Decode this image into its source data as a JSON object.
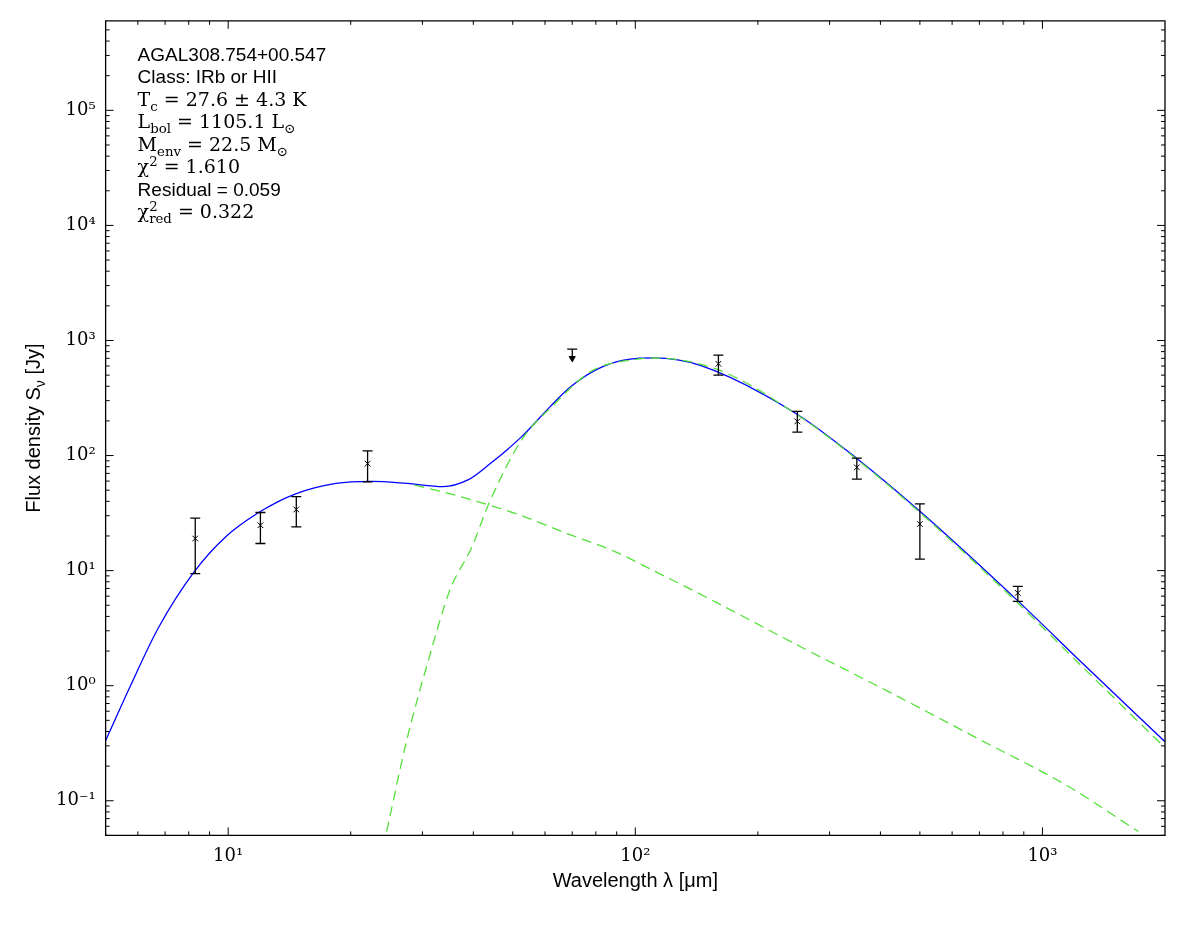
{
  "chart_data": {
    "type": "line",
    "xlabel": "Wavelength λ [μm]",
    "ylabel": "Flux density S$_{ν}$ [Jy]",
    "annotations": [
      "AGAL308.754+00.547",
      "Class: IRb or HII",
      "T$_{c}$ = 27.6 ± 4.3 K",
      "L$_{bol}$ = 1105.1 L$_{⊙}$",
      "M$_{env}$ = 22.5 M$_{⊙}$",
      "χ$^{2}$ = 1.610",
      "Residual = 0.059",
      "χ$^{2}$$_{red}$ = 0.322"
    ],
    "log": "xy",
    "grid": false,
    "legend": false,
    "xlim": [
      5,
      2000
    ],
    "ylim": [
      0.05,
      600000
    ],
    "xticks": [
      {
        "value": 5,
        "label": null
      },
      {
        "value": 6,
        "label": null
      },
      {
        "value": 7,
        "label": null
      },
      {
        "value": 8,
        "label": null
      },
      {
        "value": 9,
        "label": null
      },
      {
        "value": 10,
        "label": "10¹"
      },
      {
        "value": 20,
        "label": null
      },
      {
        "value": 30,
        "label": null
      },
      {
        "value": 40,
        "label": null
      },
      {
        "value": 50,
        "label": null
      },
      {
        "value": 60,
        "label": null
      },
      {
        "value": 70,
        "label": null
      },
      {
        "value": 80,
        "label": null
      },
      {
        "value": 90,
        "label": null
      },
      {
        "value": 100,
        "label": "10²"
      },
      {
        "value": 200,
        "label": null
      },
      {
        "value": 300,
        "label": null
      },
      {
        "value": 400,
        "label": null
      },
      {
        "value": 500,
        "label": null
      },
      {
        "value": 600,
        "label": null
      },
      {
        "value": 700,
        "label": null
      },
      {
        "value": 800,
        "label": null
      },
      {
        "value": 900,
        "label": null
      },
      {
        "value": 1000,
        "label": "10³"
      }
    ],
    "yticks": [
      {
        "value": 0.05,
        "label": null
      },
      {
        "value": 0.06,
        "label": null
      },
      {
        "value": 0.07,
        "label": null
      },
      {
        "value": 0.08,
        "label": null
      },
      {
        "value": 0.09,
        "label": null
      },
      {
        "value": 0.1,
        "label": "10⁻¹"
      },
      {
        "value": 0.2,
        "label": null
      },
      {
        "value": 0.3,
        "label": null
      },
      {
        "value": 0.4,
        "label": null
      },
      {
        "value": 0.5,
        "label": null
      },
      {
        "value": 0.6,
        "label": null
      },
      {
        "value": 0.7,
        "label": null
      },
      {
        "value": 0.8,
        "label": null
      },
      {
        "value": 0.9,
        "label": null
      },
      {
        "value": 1,
        "label": "10⁰"
      },
      {
        "value": 2,
        "label": null
      },
      {
        "value": 3,
        "label": null
      },
      {
        "value": 4,
        "label": null
      },
      {
        "value": 5,
        "label": null
      },
      {
        "value": 6,
        "label": null
      },
      {
        "value": 7,
        "label": null
      },
      {
        "value": 8,
        "label": null
      },
      {
        "value": 9,
        "label": null
      },
      {
        "value": 10,
        "label": "10¹"
      },
      {
        "value": 20,
        "label": null
      },
      {
        "value": 30,
        "label": null
      },
      {
        "value": 40,
        "label": null
      },
      {
        "value": 50,
        "label": null
      },
      {
        "value": 60,
        "label": null
      },
      {
        "value": 70,
        "label": null
      },
      {
        "value": 80,
        "label": null
      },
      {
        "value": 90,
        "label": null
      },
      {
        "value": 100,
        "label": "10²"
      },
      {
        "value": 200,
        "label": null
      },
      {
        "value": 300,
        "label": null
      },
      {
        "value": 400,
        "label": null
      },
      {
        "value": 500,
        "label": null
      },
      {
        "value": 600,
        "label": null
      },
      {
        "value": 700,
        "label": null
      },
      {
        "value": 800,
        "label": null
      },
      {
        "value": 900,
        "label": null
      },
      {
        "value": 1000,
        "label": "10³"
      },
      {
        "value": 2000,
        "label": null
      },
      {
        "value": 3000,
        "label": null
      },
      {
        "value": 4000,
        "label": null
      },
      {
        "value": 5000,
        "label": null
      },
      {
        "value": 6000,
        "label": null
      },
      {
        "value": 7000,
        "label": null
      },
      {
        "value": 8000,
        "label": null
      },
      {
        "value": 9000,
        "label": null
      },
      {
        "value": 10000,
        "label": "10⁴"
      },
      {
        "value": 20000,
        "label": null
      },
      {
        "value": 30000,
        "label": null
      },
      {
        "value": 40000,
        "label": null
      },
      {
        "value": 50000,
        "label": null
      },
      {
        "value": 60000,
        "label": null
      },
      {
        "value": 70000,
        "label": null
      },
      {
        "value": 80000,
        "label": null
      },
      {
        "value": 90000,
        "label": null
      },
      {
        "value": 100000,
        "label": "10⁵"
      },
      {
        "value": 200000,
        "label": null
      },
      {
        "value": 300000,
        "label": null
      },
      {
        "value": 400000,
        "label": null
      },
      {
        "value": 500000,
        "label": null
      }
    ],
    "series": [
      {
        "color": "#55e03c",
        "line_style": "dashed",
        "marker": "none",
        "x": [
          24.5,
          27.5,
          31.1,
          35.1,
          39.6,
          43.8,
          52.6,
          62.9,
          78.6,
          102.4,
          111,
          160,
          249,
          350,
          500,
          865,
          1273,
          2000
        ],
        "values": [
          0.054,
          0.344,
          1.71,
          6.87,
          15.8,
          39.1,
          137,
          274,
          550,
          692,
          704,
          555,
          228,
          93,
          32,
          5.33,
          1.38,
          0.289
        ]
      },
      {
        "color": "#55e03c",
        "line_style": "dashed",
        "marker": "none",
        "x": [
          28.7,
          35.1,
          43,
          52.6,
          68.2,
          88.5,
          110.2,
          153.8,
          254.7,
          421,
          697,
          1151,
          1720
        ],
        "values": [
          55.3,
          46.5,
          37.8,
          30,
          20.9,
          14.8,
          10.1,
          5.57,
          2.18,
          0.88,
          0.344,
          0.135,
          0.054
        ]
      },
      {
        "color": "#0000ff",
        "line_style": "solid",
        "marker": "none",
        "x": [
          5,
          5.74,
          6.74,
          8.24,
          9.88,
          12.03,
          14.65,
          18.4,
          22.5,
          27.5,
          33.7,
          38.8,
          43.8,
          52.6,
          61.7,
          69.7,
          83.7,
          102.4,
          111,
          145,
          249,
          350,
          500,
          865,
          1273,
          2000
        ],
        "values": [
          0.333,
          0.98,
          3.19,
          9.7,
          19.8,
          32.8,
          46.5,
          57.3,
          59.7,
          57.3,
          53.8,
          61.4,
          83.9,
          146,
          265,
          402,
          598,
          702,
          706,
          605,
          230,
          94.4,
          32.8,
          5.57,
          1.49,
          0.326
        ]
      },
      {
        "type": "scatter",
        "color": "#000000",
        "marker": "cross",
        "x": [
          8.3,
          12,
          14.7,
          22,
          160,
          250,
          350,
          500,
          870
        ],
        "values": [
          19,
          24.8,
          34,
          85,
          627,
          198,
          79,
          25.4,
          6.4
        ],
        "errors": [
          [
            9.4,
            28.6
          ],
          [
            17.2,
            32
          ],
          [
            24,
            44
          ],
          [
            59,
            110
          ],
          [
            500,
            745
          ],
          [
            160,
            242
          ],
          [
            62.5,
            95
          ],
          [
            12.6,
            38
          ],
          [
            5.4,
            7.3
          ]
        ]
      },
      {
        "type": "scatter",
        "color": "#000000",
        "marker": "triangle",
        "x": [
          70
        ],
        "values": [
          700
        ],
        "errors": [
          [
            700,
            840
          ]
        ]
      }
    ]
  }
}
